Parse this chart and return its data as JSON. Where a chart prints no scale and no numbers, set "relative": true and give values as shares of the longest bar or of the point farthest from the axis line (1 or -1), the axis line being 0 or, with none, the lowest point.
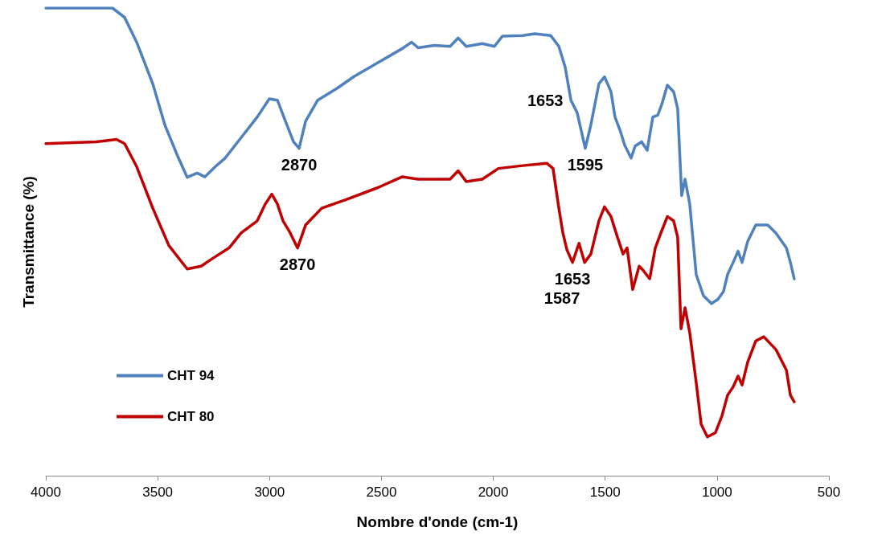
{
  "chart_data": {
    "type": "line",
    "relative": true,
    "xlabel": "Nombre d'onde (cm-1)",
    "ylabel": "Transmittance (%)",
    "xlim": [
      4000,
      500
    ],
    "xticks": [
      4000,
      3500,
      3000,
      2500,
      2000,
      1500,
      1000,
      500
    ],
    "grid": false,
    "legend": "bottom left",
    "marker": "none",
    "line_style": "solid",
    "x": [
      4000,
      3702,
      3648,
      3594,
      3522,
      3468,
      3414,
      3368,
      3324,
      3289,
      3242,
      3199,
      3127,
      3055,
      3001,
      2965,
      2929,
      2893,
      2868,
      2839,
      2785,
      2696,
      2624,
      2516,
      2408,
      2365,
      2336,
      2264,
      2193,
      2157,
      2121,
      2049,
      1995,
      1959,
      1869,
      1815,
      1743,
      1707,
      1679,
      1653,
      1625,
      1589,
      1564,
      1528,
      1503,
      1474,
      1456,
      1431,
      1413,
      1384,
      1366,
      1337,
      1312,
      1287,
      1265,
      1247,
      1222,
      1194,
      1176,
      1158,
      1143,
      1122,
      1093,
      1061,
      1025,
      996,
      971,
      953,
      928,
      906,
      888,
      863,
      827,
      773,
      737,
      690,
      672,
      655
    ],
    "series": [
      {
        "name": "CHT 94",
        "color": "#4f81bd",
        "values": [
          1.0,
          1.0,
          0.98,
          0.927,
          0.838,
          0.75,
          0.687,
          0.638,
          0.647,
          0.639,
          0.661,
          0.679,
          0.723,
          0.767,
          0.806,
          0.803,
          0.758,
          0.714,
          0.7,
          0.758,
          0.803,
          0.829,
          0.853,
          0.883,
          0.913,
          0.927,
          0.915,
          0.92,
          0.918,
          0.936,
          0.918,
          0.924,
          0.918,
          0.94,
          0.941,
          0.945,
          0.941,
          0.918,
          0.874,
          0.803,
          0.776,
          0.7,
          0.75,
          0.838,
          0.853,
          0.821,
          0.767,
          0.735,
          0.707,
          0.679,
          0.705,
          0.714,
          0.696,
          0.767,
          0.771,
          0.794,
          0.835,
          0.821,
          0.785,
          0.599,
          0.634,
          0.581,
          0.43,
          0.385,
          0.368,
          0.377,
          0.394,
          0.43,
          0.456,
          0.48,
          0.456,
          0.501,
          0.536,
          0.536,
          0.519,
          0.487,
          0.456,
          0.421
        ]
      },
      {
        "name": "CHT 80",
        "color": "#c00000",
        "x": [
          4000,
          3774,
          3684,
          3648,
          3594,
          3522,
          3450,
          3368,
          3306,
          3253,
          3181,
          3127,
          3055,
          3019,
          2990,
          2965,
          2940,
          2911,
          2875,
          2839,
          2767,
          2660,
          2516,
          2408,
          2336,
          2193,
          2157,
          2121,
          2049,
          1977,
          1869,
          1761,
          1733,
          1707,
          1689,
          1671,
          1646,
          1617,
          1592,
          1564,
          1528,
          1503,
          1474,
          1445,
          1420,
          1402,
          1377,
          1348,
          1330,
          1301,
          1276,
          1251,
          1222,
          1194,
          1176,
          1161,
          1143,
          1122,
          1093,
          1071,
          1043,
          1007,
          978,
          953,
          928,
          906,
          888,
          863,
          827,
          791,
          737,
          690,
          672,
          655
        ],
        "values": [
          0.71,
          0.714,
          0.719,
          0.71,
          0.661,
          0.572,
          0.492,
          0.442,
          0.448,
          0.465,
          0.487,
          0.519,
          0.545,
          0.581,
          0.602,
          0.581,
          0.545,
          0.522,
          0.487,
          0.536,
          0.572,
          0.59,
          0.616,
          0.639,
          0.634,
          0.634,
          0.652,
          0.629,
          0.634,
          0.657,
          0.663,
          0.668,
          0.657,
          0.572,
          0.519,
          0.483,
          0.456,
          0.497,
          0.456,
          0.474,
          0.545,
          0.575,
          0.554,
          0.51,
          0.474,
          0.487,
          0.398,
          0.448,
          0.439,
          0.421,
          0.487,
          0.519,
          0.554,
          0.545,
          0.51,
          0.314,
          0.359,
          0.306,
          0.199,
          0.11,
          0.083,
          0.092,
          0.128,
          0.172,
          0.19,
          0.213,
          0.194,
          0.243,
          0.288,
          0.297,
          0.27,
          0.226,
          0.172,
          0.158
        ]
      }
    ],
    "annotations": [
      {
        "text": "2870",
        "x": 2868,
        "y": 0.7
      },
      {
        "text": "1653",
        "x": 1653,
        "y": 0.803
      },
      {
        "text": "1595",
        "x": 1589,
        "y": 0.7
      },
      {
        "text": "2870",
        "x": 2875,
        "y": 0.487
      },
      {
        "text": "1653",
        "x": 1646,
        "y": 0.456
      },
      {
        "text": "1587",
        "x": 1592,
        "y": 0.456
      }
    ]
  }
}
